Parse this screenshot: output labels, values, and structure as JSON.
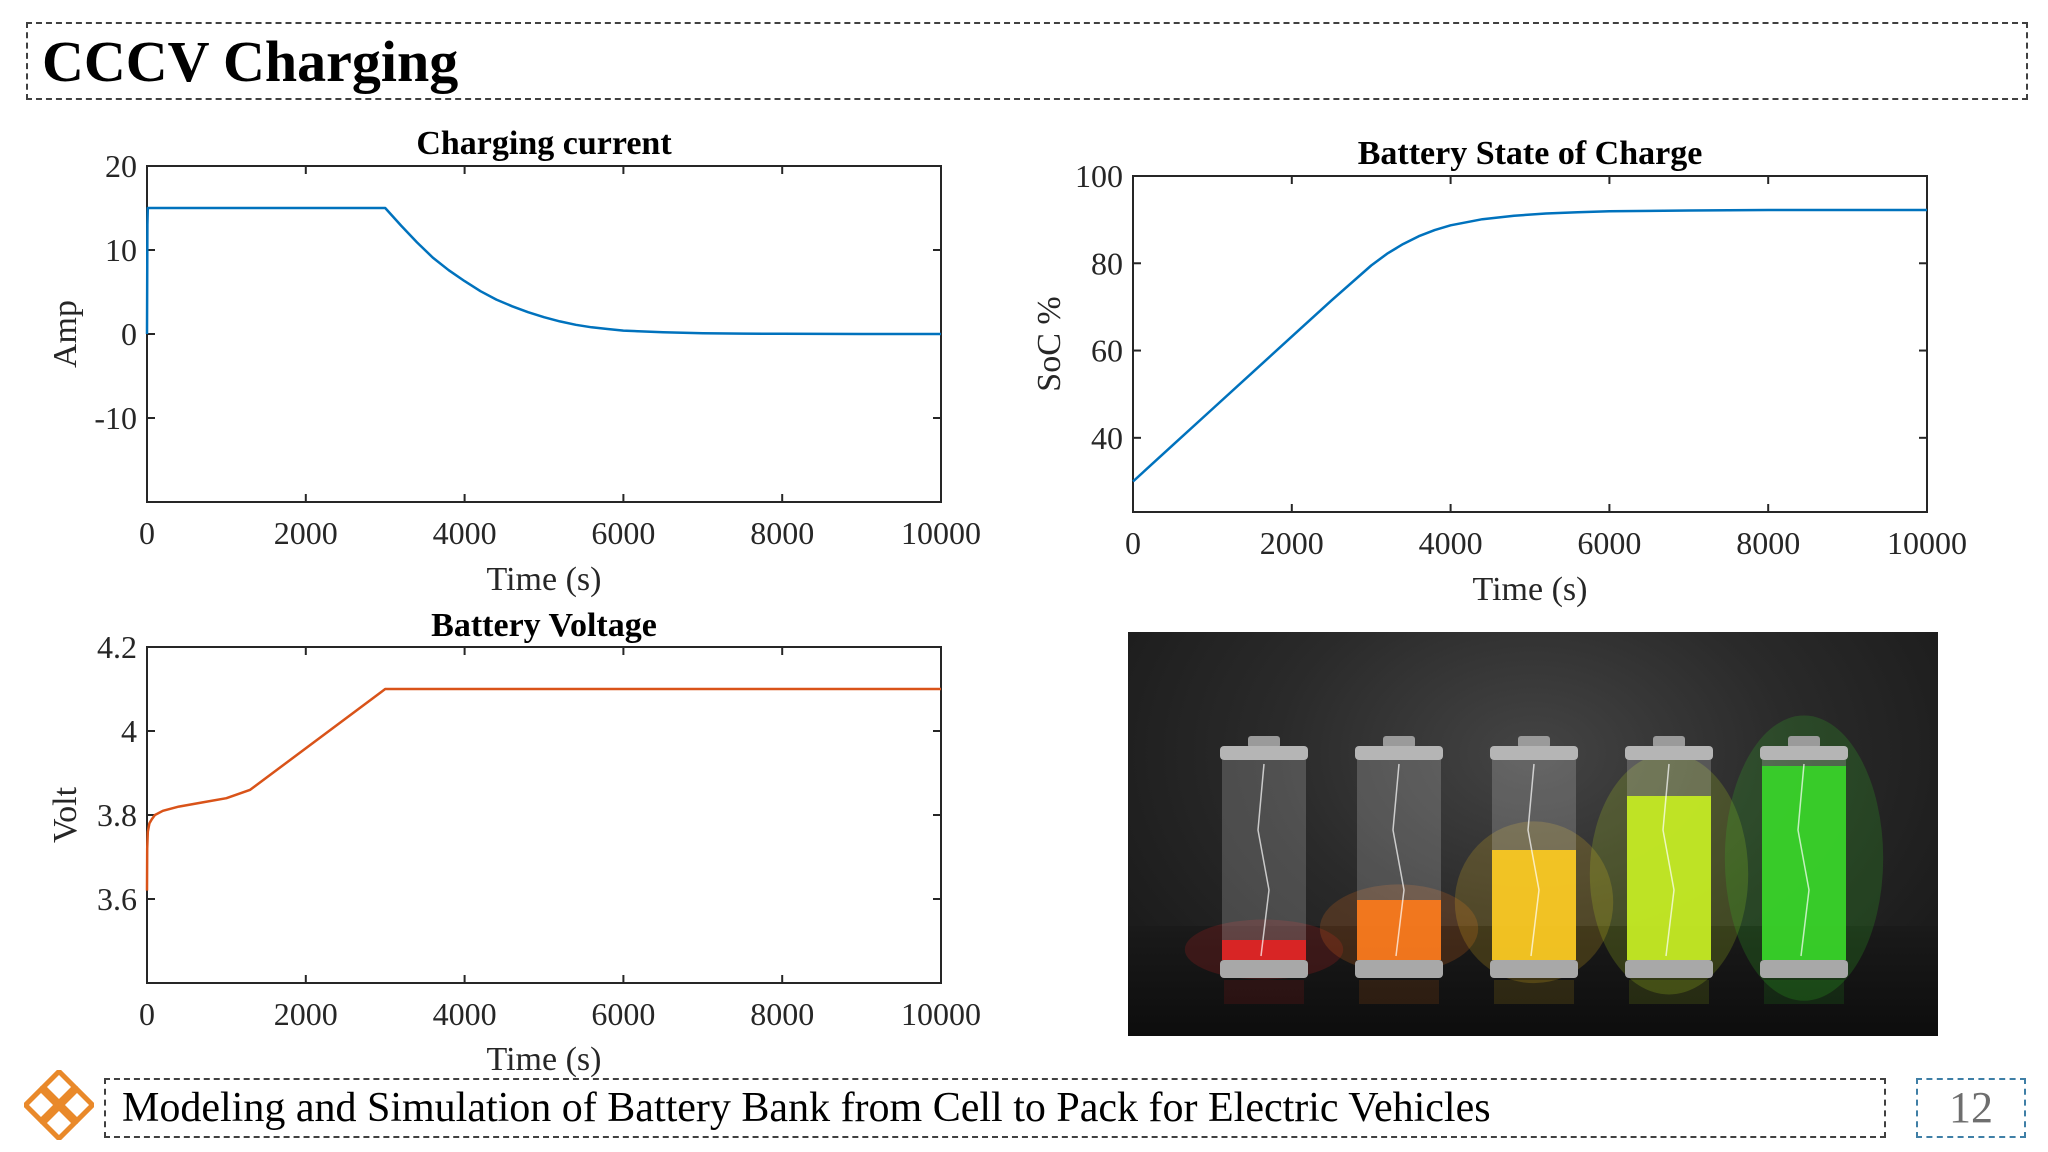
{
  "slide": {
    "title": "CCCV Charging",
    "footer": "Modeling and Simulation of Battery Bank from Cell to Pack for Electric Vehicles",
    "page_number": "12"
  },
  "image": {
    "subject": "battery-cells-charging-photo",
    "battery_fill_levels": [
      0.1,
      0.3,
      0.55,
      0.82,
      0.97
    ],
    "battery_colors": [
      "#e52222",
      "#ff7a1a",
      "#ffcc1f",
      "#c8f020",
      "#35d626"
    ]
  },
  "colors": {
    "series_blue": "#0072bd",
    "series_orange": "#d95319",
    "logo_orange": "#e9892a"
  },
  "chart_data": [
    {
      "type": "line",
      "title": "Charging current",
      "xlabel": "Time (s)",
      "ylabel": "Amp",
      "xlim": [
        0,
        10000
      ],
      "ylim": [
        -20,
        20
      ],
      "xticks": [
        0,
        2000,
        4000,
        6000,
        8000,
        10000
      ],
      "yticks": [
        -10,
        0,
        10,
        20
      ],
      "color": "#0072bd",
      "x": [
        0,
        5,
        10,
        2990,
        3000,
        3200,
        3400,
        3600,
        3800,
        4000,
        4200,
        4400,
        4600,
        4800,
        5000,
        5200,
        5400,
        5600,
        5800,
        6000,
        6500,
        7000,
        7500,
        8000,
        9000,
        10000
      ],
      "y": [
        0,
        13,
        15,
        15,
        15,
        12.9,
        10.9,
        9.1,
        7.6,
        6.3,
        5.1,
        4.1,
        3.3,
        2.6,
        2.0,
        1.5,
        1.1,
        0.8,
        0.6,
        0.4,
        0.2,
        0.1,
        0.05,
        0.02,
        0.0,
        0.0
      ]
    },
    {
      "type": "line",
      "title": "Battery State of Charge",
      "xlabel": "Time (s)",
      "ylabel": "SoC %",
      "xlim": [
        0,
        10000
      ],
      "ylim": [
        23,
        100
      ],
      "xticks": [
        0,
        2000,
        4000,
        6000,
        8000,
        10000
      ],
      "yticks": [
        40,
        60,
        80,
        100
      ],
      "color": "#0072bd",
      "x": [
        0,
        500,
        1000,
        1500,
        2000,
        2500,
        3000,
        3200,
        3400,
        3600,
        3800,
        4000,
        4400,
        4800,
        5200,
        5600,
        6000,
        7000,
        8000,
        9000,
        10000
      ],
      "y": [
        30,
        38.3,
        46.6,
        54.9,
        63.2,
        71.5,
        79.5,
        82.2,
        84.4,
        86.2,
        87.6,
        88.7,
        90.1,
        90.9,
        91.4,
        91.7,
        91.9,
        92.1,
        92.2,
        92.2,
        92.2
      ]
    },
    {
      "type": "line",
      "title": "Battery Voltage",
      "xlabel": "Time (s)",
      "ylabel": "Volt",
      "xlim": [
        0,
        10000
      ],
      "ylim": [
        3.4,
        4.2
      ],
      "xticks": [
        0,
        2000,
        4000,
        6000,
        8000,
        10000
      ],
      "yticks": [
        3.6,
        3.8,
        4,
        4.2
      ],
      "color": "#d95319",
      "x": [
        0,
        2,
        10,
        30,
        60,
        100,
        200,
        400,
        700,
        1000,
        1300,
        3000,
        3300,
        10000
      ],
      "y": [
        3.62,
        3.72,
        3.76,
        3.78,
        3.79,
        3.8,
        3.81,
        3.82,
        3.83,
        3.84,
        3.86,
        4.1,
        4.1,
        4.1
      ]
    }
  ]
}
